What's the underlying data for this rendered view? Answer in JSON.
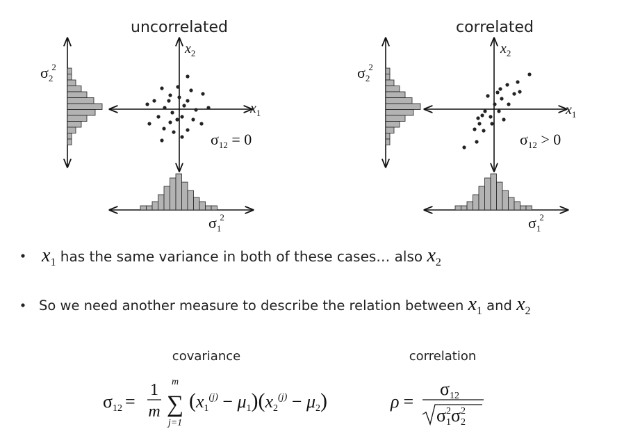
{
  "panels": [
    {
      "title": "uncorrelated",
      "x2": [
        "x",
        "2"
      ],
      "x1": [
        "x",
        "1"
      ],
      "sigma2": [
        "σ",
        "2",
        "2"
      ],
      "sigma1": [
        "σ",
        "1",
        "2"
      ],
      "relation": [
        "σ",
        "12",
        " = 0"
      ]
    },
    {
      "title": "correlated",
      "x2": [
        "x",
        "2"
      ],
      "x1": [
        "x",
        "1"
      ],
      "sigma2": [
        "σ",
        "2",
        "2"
      ],
      "sigma1": [
        "σ",
        "1",
        "2"
      ],
      "relation": [
        "σ",
        "12",
        " > 0"
      ]
    }
  ],
  "bullets": [
    [
      "x",
      "1",
      " has the same variance in both of these cases… also ",
      "x",
      "2"
    ],
    [
      "So we need another measure to describe the relation between ",
      "x",
      "1",
      " and ",
      "x",
      "2"
    ]
  ],
  "covariance": {
    "label": "covariance",
    "lhs": [
      "σ",
      "12",
      "="
    ],
    "fraction": [
      "1",
      "m"
    ],
    "sum": [
      "∑",
      "m",
      "j=1"
    ],
    "terms": [
      "(",
      "x",
      "1",
      "(j)",
      " − ",
      "μ",
      "1",
      ")",
      "(",
      "x",
      "2",
      "(j)",
      " − ",
      "μ",
      "2",
      ")"
    ]
  },
  "correlation": {
    "label": "correlation",
    "lhs": [
      "ρ",
      "="
    ],
    "numerator": [
      "σ",
      "12"
    ],
    "denominator": [
      "σ",
      "1",
      "2",
      "σ",
      "2",
      "2"
    ]
  }
}
